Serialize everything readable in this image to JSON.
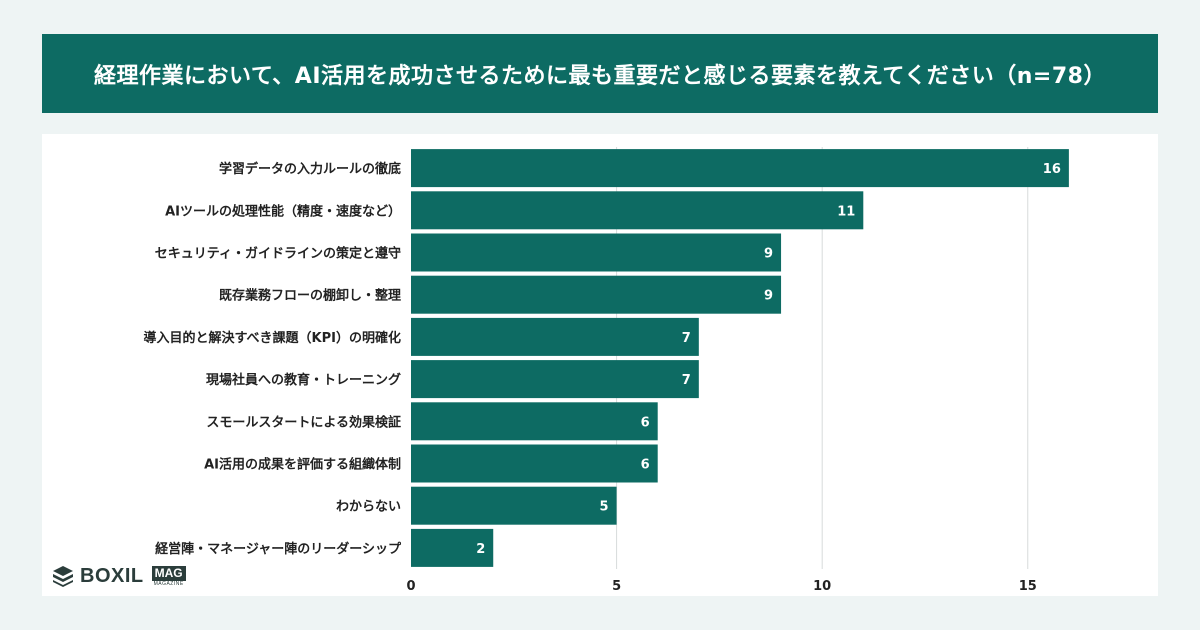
{
  "header": {
    "title": "経理作業において、AI活用を成功させるために最も重要だと感じる要素を教えてください（n=78）"
  },
  "colors": {
    "banner": "#0d6b63",
    "bar": "#0d6b63",
    "label": "#222222",
    "grid": "#d7dbdb"
  },
  "logo": {
    "brand": "BOXIL",
    "badge": "MAG",
    "sub": "MAGAZINE"
  },
  "chart_data": {
    "type": "bar",
    "orientation": "horizontal",
    "categories": [
      "学習データの入力ルールの徹底",
      "AIツールの処理性能（精度・速度など）",
      "セキュリティ・ガイドラインの策定と遵守",
      "既存業務フローの棚卸し・整理",
      "導入目的と解決すべき課題（KPI）の明確化",
      "現場社員への教育・トレーニング",
      "スモールスタートによる効果検証",
      "AI活用の成果を評価する組織体制",
      "わからない",
      "経営陣・マネージャー陣のリーダーシップ"
    ],
    "values": [
      16,
      11,
      9,
      9,
      7,
      7,
      6,
      6,
      5,
      2
    ],
    "xlim": [
      0,
      17
    ],
    "xticks": [
      0,
      5,
      10,
      15
    ],
    "grid": true,
    "data_labels": true
  }
}
